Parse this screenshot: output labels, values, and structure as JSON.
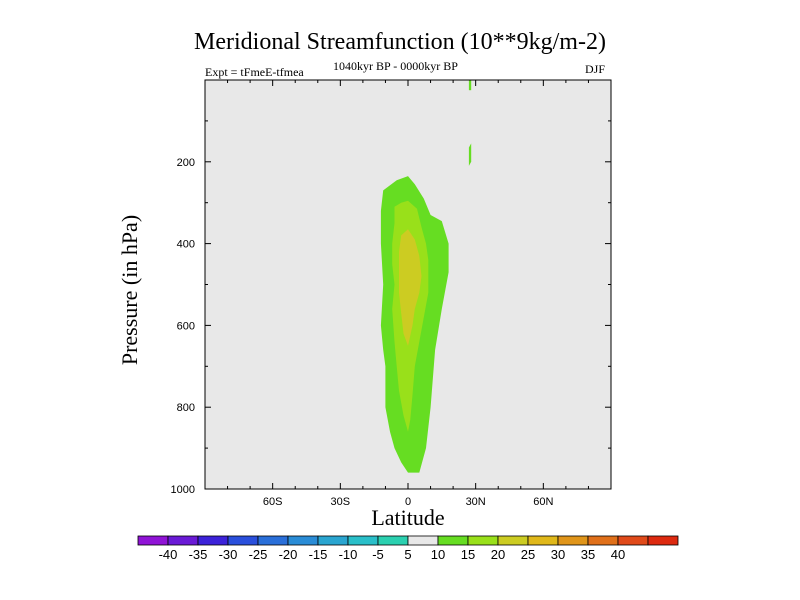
{
  "chart_data": {
    "type": "contour",
    "title": "Meridional Streamfunction (10**9kg/m-2)",
    "subtitle_left": "Expt = tFmeE-tfmea",
    "subtitle_center": "1040kyr BP - 0000kyr BP",
    "subtitle_right": "DJF",
    "xlabel": "Latitude",
    "ylabel": "Pressure (in hPa)",
    "xlim": [
      -90,
      90
    ],
    "ylim": [
      0,
      1000
    ],
    "y_reversed": true,
    "x_ticks": [
      {
        "value": -60,
        "label": "60S"
      },
      {
        "value": -30,
        "label": "30S"
      },
      {
        "value": 0,
        "label": "0"
      },
      {
        "value": 30,
        "label": "30N"
      },
      {
        "value": 60,
        "label": "60N"
      }
    ],
    "y_ticks": [
      {
        "value": 200,
        "label": "200"
      },
      {
        "value": 400,
        "label": "400"
      },
      {
        "value": 600,
        "label": "600"
      },
      {
        "value": 800,
        "label": "800"
      },
      {
        "value": 1000,
        "label": "1000"
      }
    ],
    "background_level_color": "#e8e8e8",
    "contour_levels": [
      {
        "range": "5 to 10",
        "color": "#66dd22",
        "outline": [
          [
            -11,
            270
          ],
          [
            -5,
            245
          ],
          [
            0,
            235
          ],
          [
            3,
            255
          ],
          [
            7,
            290
          ],
          [
            10,
            330
          ],
          [
            15,
            345
          ],
          [
            18,
            400
          ],
          [
            18,
            470
          ],
          [
            15,
            560
          ],
          [
            12,
            660
          ],
          [
            10,
            800
          ],
          [
            8,
            900
          ],
          [
            5,
            960
          ],
          [
            0,
            960
          ],
          [
            -3,
            935
          ],
          [
            -6,
            900
          ],
          [
            -8,
            860
          ],
          [
            -10,
            800
          ],
          [
            -10,
            700
          ],
          [
            -11,
            660
          ],
          [
            -12,
            600
          ],
          [
            -11,
            500
          ],
          [
            -12,
            400
          ],
          [
            -12,
            320
          ]
        ]
      },
      {
        "range": "10 to 15",
        "color": "#99e01a",
        "outline": [
          [
            -6,
            310
          ],
          [
            -3,
            300
          ],
          [
            0,
            295
          ],
          [
            4,
            315
          ],
          [
            6,
            360
          ],
          [
            8,
            400
          ],
          [
            9,
            440
          ],
          [
            9,
            520
          ],
          [
            7,
            580
          ],
          [
            5,
            640
          ],
          [
            3,
            700
          ],
          [
            2,
            770
          ],
          [
            1,
            830
          ],
          [
            0,
            860
          ],
          [
            -2,
            820
          ],
          [
            -4,
            760
          ],
          [
            -5,
            700
          ],
          [
            -6,
            640
          ],
          [
            -7,
            560
          ],
          [
            -6,
            500
          ],
          [
            -7,
            450
          ],
          [
            -7,
            400
          ],
          [
            -6,
            350
          ]
        ]
      },
      {
        "range": "15 to 20",
        "color": "#cccc22",
        "outline": [
          [
            -3,
            380
          ],
          [
            0,
            365
          ],
          [
            3,
            390
          ],
          [
            5,
            430
          ],
          [
            6,
            480
          ],
          [
            5,
            520
          ],
          [
            3,
            560
          ],
          [
            2,
            600
          ],
          [
            0,
            650
          ],
          [
            -2,
            620
          ],
          [
            -3,
            570
          ],
          [
            -4,
            520
          ],
          [
            -4,
            470
          ],
          [
            -4,
            420
          ]
        ]
      },
      {
        "range": "5 to 10",
        "color": "#66dd22",
        "outline": [
          [
            27,
            0
          ],
          [
            28,
            0
          ],
          [
            28,
            25
          ],
          [
            27,
            25
          ]
        ]
      },
      {
        "range": "5 to 10",
        "color": "#66dd22",
        "outline": [
          [
            27,
            165
          ],
          [
            28,
            155
          ],
          [
            28,
            200
          ],
          [
            27,
            210
          ]
        ]
      }
    ],
    "colorbar": {
      "labels": [
        "-40",
        "-35",
        "-30",
        "-25",
        "-20",
        "-15",
        "-10",
        "-5",
        "5",
        "10",
        "15",
        "20",
        "25",
        "30",
        "35",
        "40"
      ],
      "colors": [
        "#9013d6",
        "#6a1ad6",
        "#3c22d9",
        "#2a4fdc",
        "#2a6fd9",
        "#2a8cd6",
        "#2aa5d0",
        "#2abfc9",
        "#2bd0b0",
        "#e8e8e8",
        "#66dd22",
        "#99e01a",
        "#cccc22",
        "#e0b81a",
        "#e0951a",
        "#e0701a",
        "#e04a1a",
        "#dd2a10"
      ]
    }
  }
}
